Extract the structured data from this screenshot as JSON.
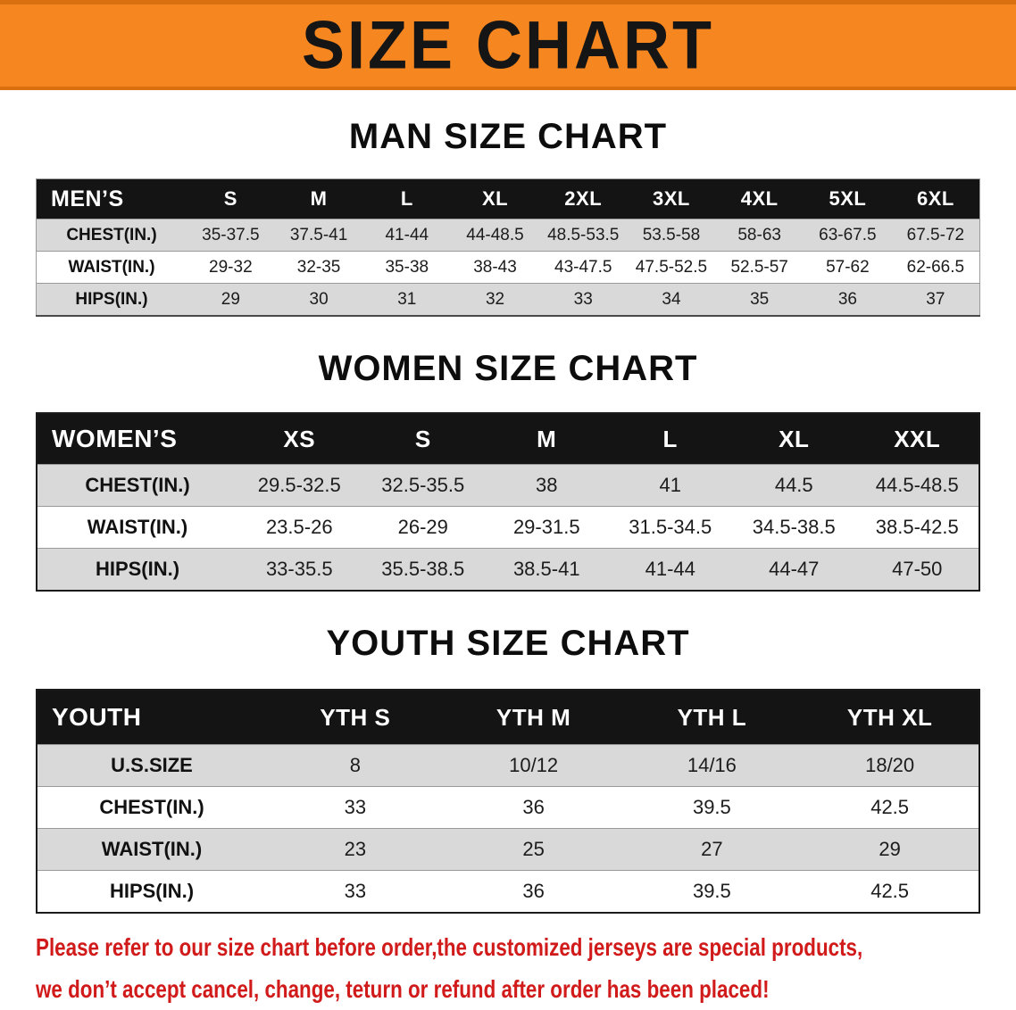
{
  "banner": {
    "title": "SIZE CHART"
  },
  "sections": [
    {
      "id": "men",
      "heading": "MAN SIZE CHART",
      "table": {
        "header": [
          "MEN’S",
          "S",
          "M",
          "L",
          "XL",
          "2XL",
          "3XL",
          "4XL",
          "5XL",
          "6XL"
        ],
        "rows": [
          [
            "CHEST(IN.)",
            "35-37.5",
            "37.5-41",
            "41-44",
            "44-48.5",
            "48.5-53.5",
            "53.5-58",
            "58-63",
            "63-67.5",
            "67.5-72"
          ],
          [
            "WAIST(IN.)",
            "29-32",
            "32-35",
            "35-38",
            "38-43",
            "43-47.5",
            "47.5-52.5",
            "52.5-57",
            "57-62",
            "62-66.5"
          ],
          [
            "HIPS(IN.)",
            "29",
            "30",
            "31",
            "32",
            "33",
            "34",
            "35",
            "36",
            "37"
          ]
        ]
      }
    },
    {
      "id": "women",
      "heading": "WOMEN SIZE CHART",
      "table": {
        "header": [
          "WOMEN’S",
          "XS",
          "S",
          "M",
          "L",
          "XL",
          "XXL"
        ],
        "rows": [
          [
            "CHEST(IN.)",
            "29.5-32.5",
            "32.5-35.5",
            "38",
            "41",
            "44.5",
            "44.5-48.5"
          ],
          [
            "WAIST(IN.)",
            "23.5-26",
            "26-29",
            "29-31.5",
            "31.5-34.5",
            "34.5-38.5",
            "38.5-42.5"
          ],
          [
            "HIPS(IN.)",
            "33-35.5",
            "35.5-38.5",
            "38.5-41",
            "41-44",
            "44-47",
            "47-50"
          ]
        ]
      }
    },
    {
      "id": "youth",
      "heading": "YOUTH SIZE CHART",
      "table": {
        "header": [
          "YOUTH",
          "YTH S",
          "YTH M",
          "YTH L",
          "YTH XL"
        ],
        "rows": [
          [
            "U.S.SIZE",
            "8",
            "10/12",
            "14/16",
            "18/20"
          ],
          [
            "CHEST(IN.)",
            "33",
            "36",
            "39.5",
            "42.5"
          ],
          [
            "WAIST(IN.)",
            "23",
            "25",
            "27",
            "29"
          ],
          [
            "HIPS(IN.)",
            "33",
            "36",
            "39.5",
            "42.5"
          ]
        ]
      }
    }
  ],
  "disclaimer": {
    "line1": "Please refer to our size chart before order,the customized jerseys are special products,",
    "line2": "we don’t accept cancel, change, teturn or refund after order has been placed!"
  },
  "colors": {
    "banner_orange": "#F6861F",
    "banner_edge": "#D96F0E",
    "header_black": "#141414",
    "stripe_gray": "#D9D9D9",
    "disclaimer_red": "#D11A1A"
  }
}
